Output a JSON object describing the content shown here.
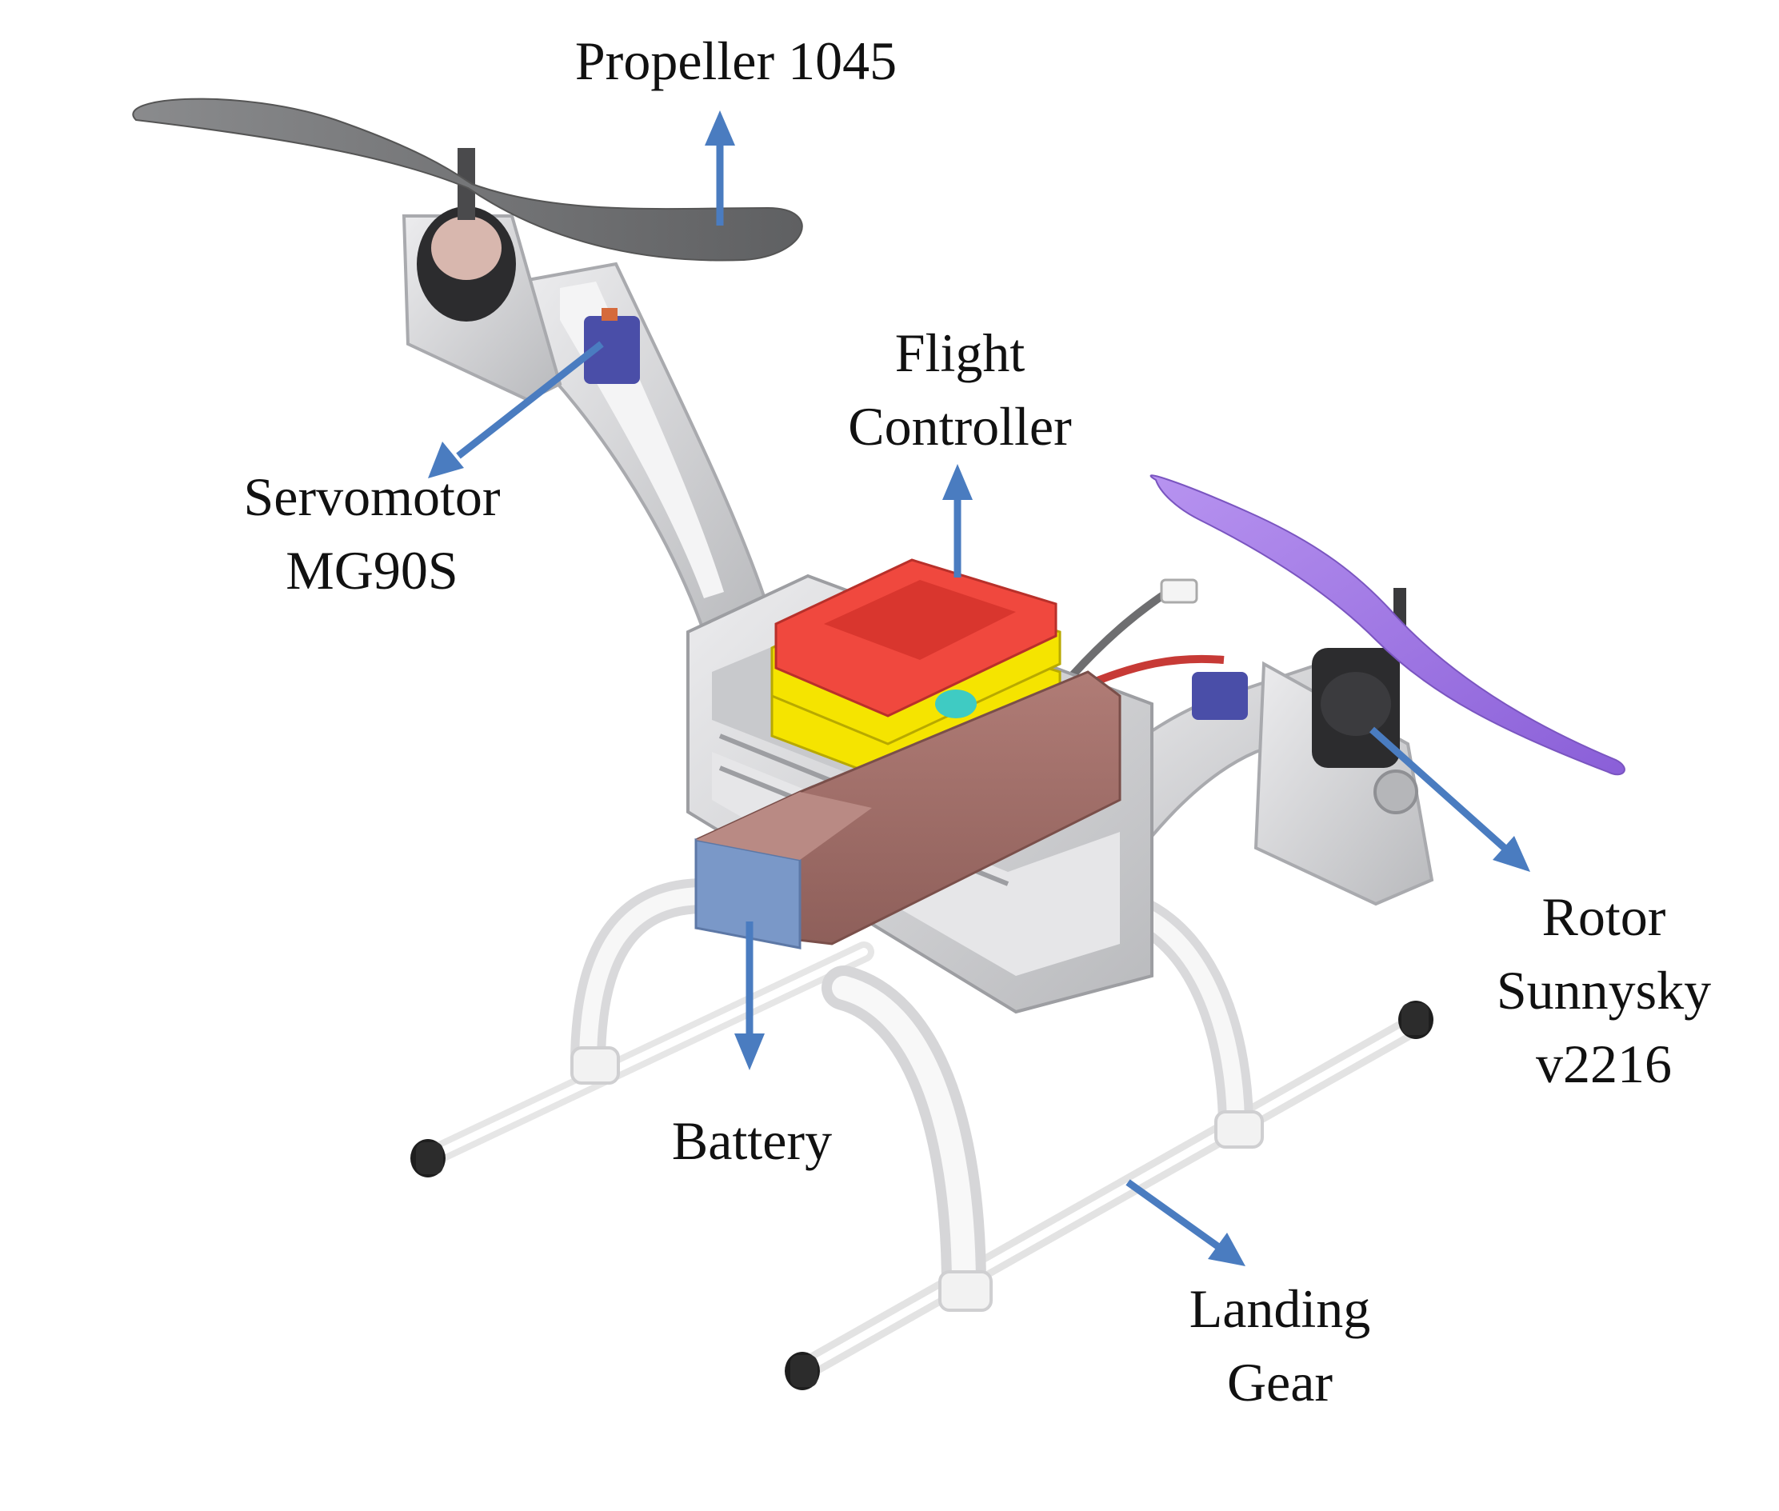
{
  "colors": {
    "arrow": "#4a7cc0",
    "frame": "#d7d7d9",
    "frame_dark": "#a9aaae",
    "propeller_gray": "#7b7c7e",
    "propeller_purple": "#a87ee8",
    "controller_red": "#f0483e",
    "controller_yellow": "#f5e400",
    "battery_brown": "#a97670",
    "battery_blue": "#7a98c8",
    "servo_blue": "#4a4ea8",
    "motor_black": "#2c2c2e",
    "gear_white": "#f2f2f2"
  },
  "labels": {
    "propeller": "Propeller 1045",
    "servomotor": [
      "Servomotor",
      "MG90S"
    ],
    "flight_controller": [
      "Flight",
      "Controller"
    ],
    "rotor": [
      "Rotor",
      "Sunnysky",
      "v2216"
    ],
    "battery": "Battery",
    "landing_gear": [
      "Landing",
      "Gear"
    ]
  }
}
